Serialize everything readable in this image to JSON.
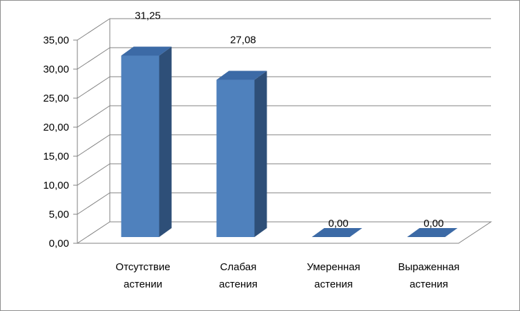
{
  "chart_data": {
    "type": "bar",
    "categories": [
      [
        "Отсутствие",
        "астении"
      ],
      [
        "Слабая",
        "астения"
      ],
      [
        "Умеренная",
        "астения"
      ],
      [
        "Выраженная",
        "астения"
      ]
    ],
    "values": [
      31.25,
      27.08,
      0.0,
      0.0
    ],
    "data_labels": [
      "31,25",
      "27,08",
      "0,00",
      "0,00"
    ],
    "y_ticks": [
      "0,00",
      "5,00",
      "10,00",
      "15,00",
      "20,00",
      "25,00",
      "30,00",
      "35,00"
    ],
    "ylim": [
      0,
      35
    ],
    "grid": true,
    "legend": "none",
    "colors": {
      "bar_front": "#4f81bd",
      "bar_side": "#2e4f78",
      "bar_top": "#3c6aa6",
      "grid": "#808080"
    }
  }
}
